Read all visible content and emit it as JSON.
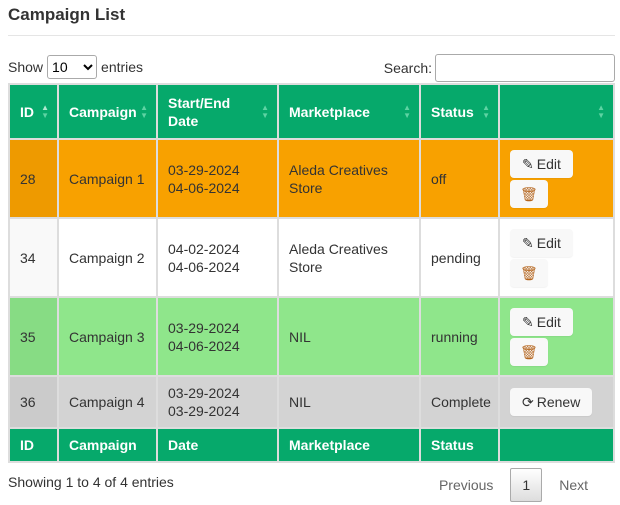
{
  "title": "Campaign List",
  "show": {
    "label_before": "Show",
    "value": "10",
    "label_after": "entries"
  },
  "search": {
    "label": "Search:",
    "value": ""
  },
  "headers": [
    "ID",
    "Campaign",
    "Start/End Date",
    "Marketplace",
    "Status",
    ""
  ],
  "footers": [
    "ID",
    "Campaign",
    "Date",
    "Marketplace",
    "Status",
    ""
  ],
  "rows": [
    {
      "id": "28",
      "campaign": "Campaign 1",
      "start": "03-29-2024",
      "end": "04-06-2024",
      "marketplace": "Aleda Creatives Store",
      "status": "off",
      "bg": "#f8a100",
      "idbg": "#ee9a00",
      "actions": [
        "Edit",
        "delete"
      ]
    },
    {
      "id": "34",
      "campaign": "Campaign 2",
      "start": "04-02-2024",
      "end": "04-06-2024",
      "marketplace": "Aleda Creatives Store",
      "status": "pending",
      "bg": "#ffffff",
      "idbg": "#f9f9f9",
      "actions": [
        "Edit",
        "delete"
      ]
    },
    {
      "id": "35",
      "campaign": "Campaign 3",
      "start": "03-29-2024",
      "end": "04-06-2024",
      "marketplace": "NIL",
      "status": "running",
      "bg": "#8fe68b",
      "idbg": "#87dc84",
      "actions": [
        "Edit",
        "delete"
      ]
    },
    {
      "id": "36",
      "campaign": "Campaign 4",
      "start": "03-29-2024",
      "end": "03-29-2024",
      "marketplace": "NIL",
      "status": "Complete",
      "bg": "#d3d3d3",
      "idbg": "#cbcbcb",
      "actions": [
        "Renew"
      ]
    }
  ],
  "info": "Showing 1 to 4 of 4 entries",
  "pager": {
    "previous": "Previous",
    "current": "1",
    "next": "Next"
  },
  "colors": {
    "header": "#06a96b"
  }
}
